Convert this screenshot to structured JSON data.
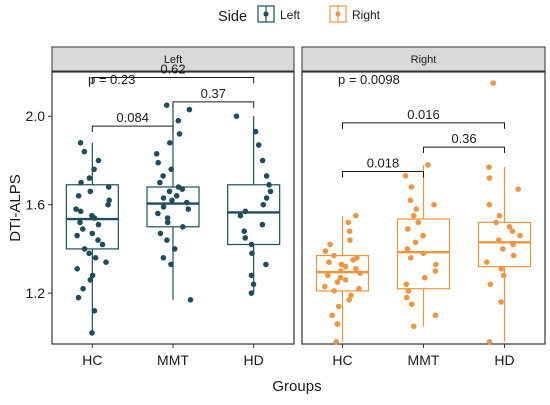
{
  "chart_data": {
    "type": "boxplot",
    "ylabel": "DTI-ALPS",
    "xlabel": "Groups",
    "categories": [
      "HC",
      "MMT",
      "HD"
    ],
    "yticks": [
      1.2,
      1.6,
      2.0
    ],
    "ytick_labels": [
      "1.2",
      "1.6",
      "2.0"
    ],
    "ylim": [
      0.97,
      2.2
    ],
    "grid": false,
    "legend": {
      "title": "Side",
      "placement": "top",
      "items": [
        {
          "label": "Left",
          "color": "#1f4e5a"
        },
        {
          "label": "Right",
          "color": "#f0953f"
        }
      ]
    },
    "panels": [
      {
        "name": "Left",
        "color": "#1f4e5a",
        "global_p": "p = 0.23",
        "boxes": [
          {
            "group": "HC",
            "whisker_low": 1.02,
            "q1": 1.4,
            "median": 1.535,
            "q3": 1.69,
            "whisker_high": 1.88
          },
          {
            "group": "MMT",
            "whisker_low": 1.17,
            "q1": 1.5,
            "median": 1.605,
            "q3": 1.68,
            "whisker_high": 2.05
          },
          {
            "group": "HD",
            "whisker_low": 1.2,
            "q1": 1.42,
            "median": 1.565,
            "q3": 1.69,
            "whisker_high": 2.0
          }
        ],
        "points": [
          {
            "group": "HC",
            "values": [
              1.02,
              1.12,
              1.18,
              1.22,
              1.26,
              1.28,
              1.31,
              1.34,
              1.36,
              1.38,
              1.4,
              1.42,
              1.44,
              1.46,
              1.47,
              1.49,
              1.51,
              1.52,
              1.54,
              1.55,
              1.57,
              1.58,
              1.6,
              1.62,
              1.64,
              1.66,
              1.68,
              1.7,
              1.72,
              1.76,
              1.8,
              1.84,
              1.88
            ]
          },
          {
            "group": "MMT",
            "values": [
              1.17,
              1.33,
              1.36,
              1.4,
              1.44,
              1.47,
              1.5,
              1.52,
              1.54,
              1.56,
              1.58,
              1.59,
              1.61,
              1.62,
              1.63,
              1.64,
              1.66,
              1.67,
              1.68,
              1.7,
              1.73,
              1.76,
              1.79,
              1.83,
              1.88,
              1.92,
              1.98,
              2.03,
              2.05
            ]
          },
          {
            "group": "HD",
            "values": [
              1.2,
              1.24,
              1.28,
              1.33,
              1.38,
              1.42,
              1.45,
              1.48,
              1.51,
              1.55,
              1.57,
              1.6,
              1.63,
              1.66,
              1.69,
              1.73,
              1.8,
              1.87,
              1.93,
              2.0
            ]
          }
        ],
        "comparisons": [
          {
            "from": "HC",
            "to": "MMT",
            "label": "0.084",
            "y": 1.955
          },
          {
            "from": "MMT",
            "to": "HD",
            "label": "0.37",
            "y": 2.065
          },
          {
            "from": "HC",
            "to": "HD",
            "label": "0.62",
            "y": 2.175
          }
        ]
      },
      {
        "name": "Right",
        "color": "#f0953f",
        "global_p": "p = 0.0098",
        "boxes": [
          {
            "group": "HC",
            "whisker_low": 0.98,
            "q1": 1.21,
            "median": 1.295,
            "q3": 1.37,
            "whisker_high": 1.55
          },
          {
            "group": "MMT",
            "whisker_low": 1.05,
            "q1": 1.22,
            "median": 1.385,
            "q3": 1.535,
            "whisker_high": 1.78
          },
          {
            "group": "HD",
            "whisker_low": 0.98,
            "q1": 1.32,
            "median": 1.43,
            "q3": 1.52,
            "whisker_high": 1.77
          }
        ],
        "points": [
          {
            "group": "HC",
            "values": [
              0.98,
              1.06,
              1.1,
              1.14,
              1.17,
              1.19,
              1.21,
              1.22,
              1.23,
              1.25,
              1.26,
              1.27,
              1.28,
              1.29,
              1.3,
              1.31,
              1.32,
              1.33,
              1.34,
              1.35,
              1.36,
              1.37,
              1.39,
              1.42,
              1.44,
              1.48,
              1.52,
              1.55
            ]
          },
          {
            "group": "MMT",
            "values": [
              1.05,
              1.1,
              1.15,
              1.18,
              1.21,
              1.24,
              1.27,
              1.3,
              1.33,
              1.36,
              1.38,
              1.4,
              1.43,
              1.46,
              1.49,
              1.52,
              1.55,
              1.58,
              1.6,
              1.62,
              1.68,
              1.73,
              1.78
            ]
          },
          {
            "group": "HD",
            "values": [
              0.98,
              1.16,
              1.24,
              1.28,
              1.31,
              1.34,
              1.37,
              1.4,
              1.42,
              1.44,
              1.46,
              1.48,
              1.5,
              1.52,
              1.55,
              1.6,
              1.67,
              1.72,
              1.77,
              2.15
            ]
          }
        ],
        "comparisons": [
          {
            "from": "HC",
            "to": "MMT",
            "label": "0.018",
            "y": 1.75
          },
          {
            "from": "MMT",
            "to": "HD",
            "label": "0.36",
            "y": 1.86
          },
          {
            "from": "HC",
            "to": "HD",
            "label": "0.016",
            "y": 1.97
          }
        ]
      }
    ]
  }
}
